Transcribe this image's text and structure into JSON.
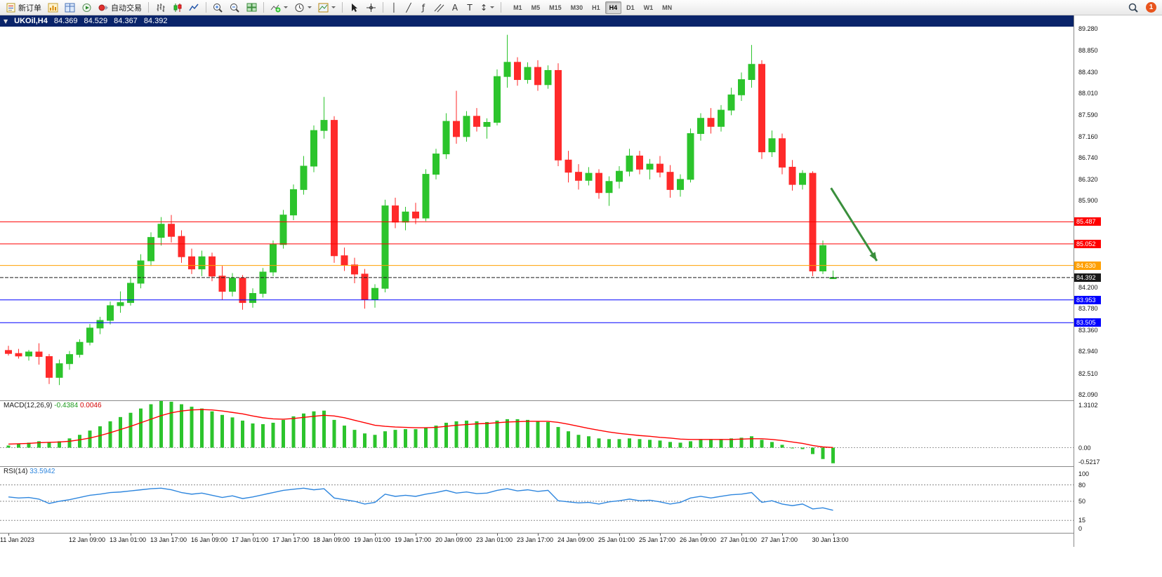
{
  "toolbar": {
    "new_order": "新订单",
    "auto_trading": "自动交易",
    "timeframes": [
      "M1",
      "M5",
      "M15",
      "M30",
      "H1",
      "H4",
      "D1",
      "W1",
      "MN"
    ],
    "active_timeframe": "H4",
    "notification_count": "1",
    "tool_glyphs": {
      "vertical_line": "│",
      "trendline": "╱",
      "fibonacci": "ƒ",
      "text": "A",
      "text_label": "T",
      "arrows": "↕"
    }
  },
  "chart_window": {
    "symbol_period": "UKOil,H4",
    "open": "84.369",
    "high": "84.529",
    "low": "84.367",
    "close": "84.392"
  },
  "price_axis": {
    "ticks": [
      "89.280",
      "88.850",
      "88.430",
      "88.010",
      "87.590",
      "87.160",
      "86.740",
      "86.320",
      "85.900",
      "84.200",
      "83.780",
      "83.360",
      "82.940",
      "82.510",
      "82.090"
    ]
  },
  "time_axis": {
    "labels": [
      "11 Jan 2023",
      "12 Jan 09:00",
      "13 Jan 01:00",
      "13 Jan 17:00",
      "16 Jan 09:00",
      "17 Jan 01:00",
      "17 Jan 17:00",
      "18 Jan 09:00",
      "19 Jan 01:00",
      "19 Jan 17:00",
      "20 Jan 09:00",
      "23 Jan 01:00",
      "23 Jan 17:00",
      "24 Jan 09:00",
      "25 Jan 01:00",
      "25 Jan 17:00",
      "26 Jan 09:00",
      "27 Jan 01:00",
      "27 Jan 17:00",
      "30 Jan 13:00"
    ],
    "indices": [
      0,
      8,
      12,
      16,
      20,
      24,
      28,
      32,
      36,
      40,
      44,
      48,
      52,
      56,
      60,
      64,
      68,
      72,
      76,
      81
    ]
  },
  "indicators": {
    "macd": {
      "label": "MACD(12,26,9)",
      "value_main": "-0.4384",
      "value_signal": "0.0046",
      "scale": [
        "1.3102",
        "0.00",
        "-0.5217"
      ]
    },
    "rsi": {
      "label": "RSI(14)",
      "value": "33.5942",
      "scale": [
        "100",
        "80",
        "50",
        "15",
        "0"
      ]
    }
  },
  "chart_data": [
    {
      "type": "candlestick",
      "title": "UKOil,H4",
      "timeframe": "H4",
      "ylim": [
        81.98,
        89.32
      ],
      "colors": {
        "bull": "#2cc42c",
        "bear": "#ff2a2a"
      },
      "hlines": [
        {
          "value": 85.487,
          "label": "85.487",
          "color": "#ff0000"
        },
        {
          "value": 85.052,
          "label": "85.052",
          "color": "#ff0000"
        },
        {
          "value": 84.63,
          "label": "84.630",
          "color": "#ffa000"
        },
        {
          "value": 84.392,
          "label": "84.392",
          "color": "#1a1a1a",
          "style": "current"
        },
        {
          "value": 83.953,
          "label": "83.953",
          "color": "#0000ff"
        },
        {
          "value": 83.505,
          "label": "83.505",
          "color": "#0000ff"
        }
      ],
      "arrow": {
        "from_index": 80.8,
        "from_price": 86.15,
        "to_index": 85.3,
        "to_price": 84.72,
        "color": "#3a8f3c"
      },
      "ohlc": [
        [
          82.96,
          83.05,
          82.86,
          82.9
        ],
        [
          82.9,
          82.99,
          82.8,
          82.85
        ],
        [
          82.85,
          82.97,
          82.76,
          82.93
        ],
        [
          82.93,
          83.1,
          82.68,
          82.84
        ],
        [
          82.84,
          82.89,
          82.3,
          82.43
        ],
        [
          82.43,
          82.78,
          82.28,
          82.7
        ],
        [
          82.7,
          82.95,
          82.58,
          82.88
        ],
        [
          82.88,
          83.18,
          82.82,
          83.12
        ],
        [
          83.12,
          83.48,
          83.06,
          83.4
        ],
        [
          83.4,
          83.62,
          83.28,
          83.55
        ],
        [
          83.55,
          83.92,
          83.47,
          83.84
        ],
        [
          83.84,
          84.12,
          83.7,
          83.9
        ],
        [
          83.9,
          84.38,
          83.84,
          84.28
        ],
        [
          84.28,
          84.85,
          84.18,
          84.72
        ],
        [
          84.72,
          85.28,
          84.62,
          85.18
        ],
        [
          85.18,
          85.58,
          85.02,
          85.44
        ],
        [
          85.44,
          85.62,
          85.08,
          85.2
        ],
        [
          85.2,
          85.32,
          84.68,
          84.8
        ],
        [
          84.8,
          84.96,
          84.46,
          84.56
        ],
        [
          84.56,
          84.92,
          84.42,
          84.8
        ],
        [
          84.8,
          84.88,
          84.32,
          84.42
        ],
        [
          84.42,
          84.62,
          83.96,
          84.12
        ],
        [
          84.12,
          84.48,
          84.02,
          84.38
        ],
        [
          84.38,
          84.44,
          83.76,
          83.9
        ],
        [
          83.9,
          84.18,
          83.8,
          84.08
        ],
        [
          84.08,
          84.58,
          84.0,
          84.5
        ],
        [
          84.5,
          85.12,
          84.42,
          85.04
        ],
        [
          85.04,
          85.72,
          84.96,
          85.62
        ],
        [
          85.62,
          86.22,
          85.52,
          86.12
        ],
        [
          86.12,
          86.78,
          86.02,
          86.58
        ],
        [
          86.58,
          87.38,
          86.46,
          87.28
        ],
        [
          87.28,
          87.94,
          87.12,
          87.48
        ],
        [
          87.48,
          87.56,
          84.68,
          84.82
        ],
        [
          84.82,
          84.98,
          84.52,
          84.64
        ],
        [
          84.64,
          84.78,
          84.28,
          84.46
        ],
        [
          84.46,
          84.56,
          83.78,
          83.96
        ],
        [
          83.96,
          84.26,
          83.8,
          84.18
        ],
        [
          84.18,
          85.92,
          84.1,
          85.8
        ],
        [
          85.8,
          85.96,
          85.36,
          85.48
        ],
        [
          85.48,
          85.78,
          85.32,
          85.68
        ],
        [
          85.68,
          85.86,
          85.44,
          85.56
        ],
        [
          85.56,
          86.52,
          85.5,
          86.42
        ],
        [
          86.42,
          86.92,
          86.32,
          86.82
        ],
        [
          86.82,
          87.62,
          86.72,
          87.46
        ],
        [
          87.46,
          88.06,
          87.02,
          87.16
        ],
        [
          87.16,
          87.66,
          87.06,
          87.56
        ],
        [
          87.56,
          87.72,
          87.26,
          87.36
        ],
        [
          87.36,
          87.52,
          87.12,
          87.44
        ],
        [
          87.44,
          88.48,
          87.38,
          88.34
        ],
        [
          88.34,
          89.16,
          88.12,
          88.62
        ],
        [
          88.62,
          88.72,
          88.16,
          88.28
        ],
        [
          88.28,
          88.62,
          88.2,
          88.52
        ],
        [
          88.52,
          88.66,
          88.06,
          88.18
        ],
        [
          88.18,
          88.56,
          88.1,
          88.46
        ],
        [
          88.46,
          88.6,
          86.58,
          86.7
        ],
        [
          86.7,
          86.88,
          86.26,
          86.46
        ],
        [
          86.46,
          86.62,
          86.12,
          86.3
        ],
        [
          86.3,
          86.56,
          86.2,
          86.44
        ],
        [
          86.44,
          86.52,
          85.94,
          86.06
        ],
        [
          86.06,
          86.38,
          85.8,
          86.28
        ],
        [
          86.28,
          86.58,
          86.14,
          86.48
        ],
        [
          86.48,
          86.92,
          86.38,
          86.78
        ],
        [
          86.78,
          86.88,
          86.42,
          86.52
        ],
        [
          86.52,
          86.72,
          86.32,
          86.62
        ],
        [
          86.62,
          86.78,
          86.36,
          86.46
        ],
        [
          86.46,
          86.6,
          85.96,
          86.12
        ],
        [
          86.12,
          86.42,
          85.98,
          86.32
        ],
        [
          86.32,
          87.32,
          86.26,
          87.22
        ],
        [
          87.22,
          87.62,
          87.08,
          87.52
        ],
        [
          87.52,
          87.72,
          87.22,
          87.36
        ],
        [
          87.36,
          87.78,
          87.26,
          87.68
        ],
        [
          87.68,
          88.12,
          87.58,
          87.98
        ],
        [
          87.98,
          88.42,
          87.86,
          88.28
        ],
        [
          88.28,
          88.96,
          88.12,
          88.58
        ],
        [
          88.58,
          88.66,
          86.72,
          86.86
        ],
        [
          86.86,
          87.28,
          86.76,
          87.12
        ],
        [
          87.12,
          87.22,
          86.42,
          86.56
        ],
        [
          86.56,
          86.7,
          86.1,
          86.22
        ],
        [
          86.22,
          86.5,
          86.12,
          86.44
        ],
        [
          86.44,
          86.48,
          84.42,
          84.52
        ],
        [
          84.52,
          85.12,
          84.46,
          85.02
        ],
        [
          84.369,
          84.529,
          84.367,
          84.392
        ]
      ]
    },
    {
      "type": "bar",
      "name": "MACD(12,26,9)",
      "ylim": [
        -0.5217,
        1.3102
      ],
      "colors": {
        "histogram": "#2cc42c",
        "signal": "#ff0000"
      },
      "current_main": -0.4384,
      "current_signal": 0.0046,
      "histogram": [
        0.06,
        0.1,
        0.14,
        0.18,
        0.16,
        0.18,
        0.26,
        0.36,
        0.48,
        0.6,
        0.74,
        0.86,
        0.98,
        1.1,
        1.22,
        1.31,
        1.29,
        1.22,
        1.15,
        1.1,
        1.02,
        0.92,
        0.85,
        0.76,
        0.68,
        0.66,
        0.7,
        0.78,
        0.88,
        0.96,
        1.02,
        1.04,
        0.78,
        0.62,
        0.5,
        0.4,
        0.36,
        0.46,
        0.5,
        0.52,
        0.52,
        0.56,
        0.62,
        0.7,
        0.74,
        0.76,
        0.74,
        0.72,
        0.76,
        0.8,
        0.8,
        0.78,
        0.74,
        0.72,
        0.58,
        0.46,
        0.36,
        0.32,
        0.26,
        0.24,
        0.24,
        0.26,
        0.24,
        0.22,
        0.2,
        0.16,
        0.14,
        0.18,
        0.22,
        0.22,
        0.24,
        0.26,
        0.28,
        0.32,
        0.22,
        0.16,
        0.08,
        0.0,
        -0.04,
        -0.18,
        -0.32,
        -0.4384
      ],
      "signal": [
        0.1,
        0.11,
        0.12,
        0.14,
        0.15,
        0.16,
        0.18,
        0.22,
        0.27,
        0.34,
        0.42,
        0.51,
        0.6,
        0.7,
        0.8,
        0.9,
        0.98,
        1.03,
        1.06,
        1.07,
        1.06,
        1.03,
        0.99,
        0.95,
        0.89,
        0.84,
        0.81,
        0.8,
        0.82,
        0.85,
        0.88,
        0.91,
        0.89,
        0.84,
        0.77,
        0.7,
        0.63,
        0.6,
        0.58,
        0.57,
        0.56,
        0.56,
        0.57,
        0.6,
        0.63,
        0.65,
        0.67,
        0.68,
        0.7,
        0.72,
        0.73,
        0.74,
        0.74,
        0.74,
        0.71,
        0.66,
        0.6,
        0.54,
        0.49,
        0.44,
        0.4,
        0.37,
        0.34,
        0.32,
        0.29,
        0.27,
        0.24,
        0.23,
        0.23,
        0.23,
        0.23,
        0.23,
        0.24,
        0.25,
        0.25,
        0.23,
        0.2,
        0.16,
        0.12,
        0.06,
        0.02,
        0.0046
      ]
    },
    {
      "type": "line",
      "name": "RSI(14)",
      "ylim": [
        0,
        100
      ],
      "color": "#2e86de",
      "levels": [
        80,
        50,
        15
      ],
      "current": 33.5942,
      "values": [
        58,
        56,
        57,
        54,
        46,
        50,
        53,
        57,
        61,
        63,
        66,
        67,
        69,
        71,
        73,
        74,
        71,
        66,
        63,
        65,
        61,
        57,
        60,
        55,
        58,
        62,
        66,
        70,
        72,
        74,
        71,
        73,
        56,
        53,
        50,
        45,
        48,
        63,
        59,
        61,
        59,
        63,
        66,
        70,
        65,
        67,
        64,
        65,
        70,
        73,
        69,
        71,
        68,
        70,
        51,
        49,
        47,
        48,
        45,
        49,
        51,
        54,
        51,
        52,
        49,
        45,
        48,
        56,
        59,
        56,
        59,
        62,
        63,
        66,
        48,
        51,
        45,
        42,
        45,
        36,
        38,
        33.5942
      ]
    }
  ]
}
